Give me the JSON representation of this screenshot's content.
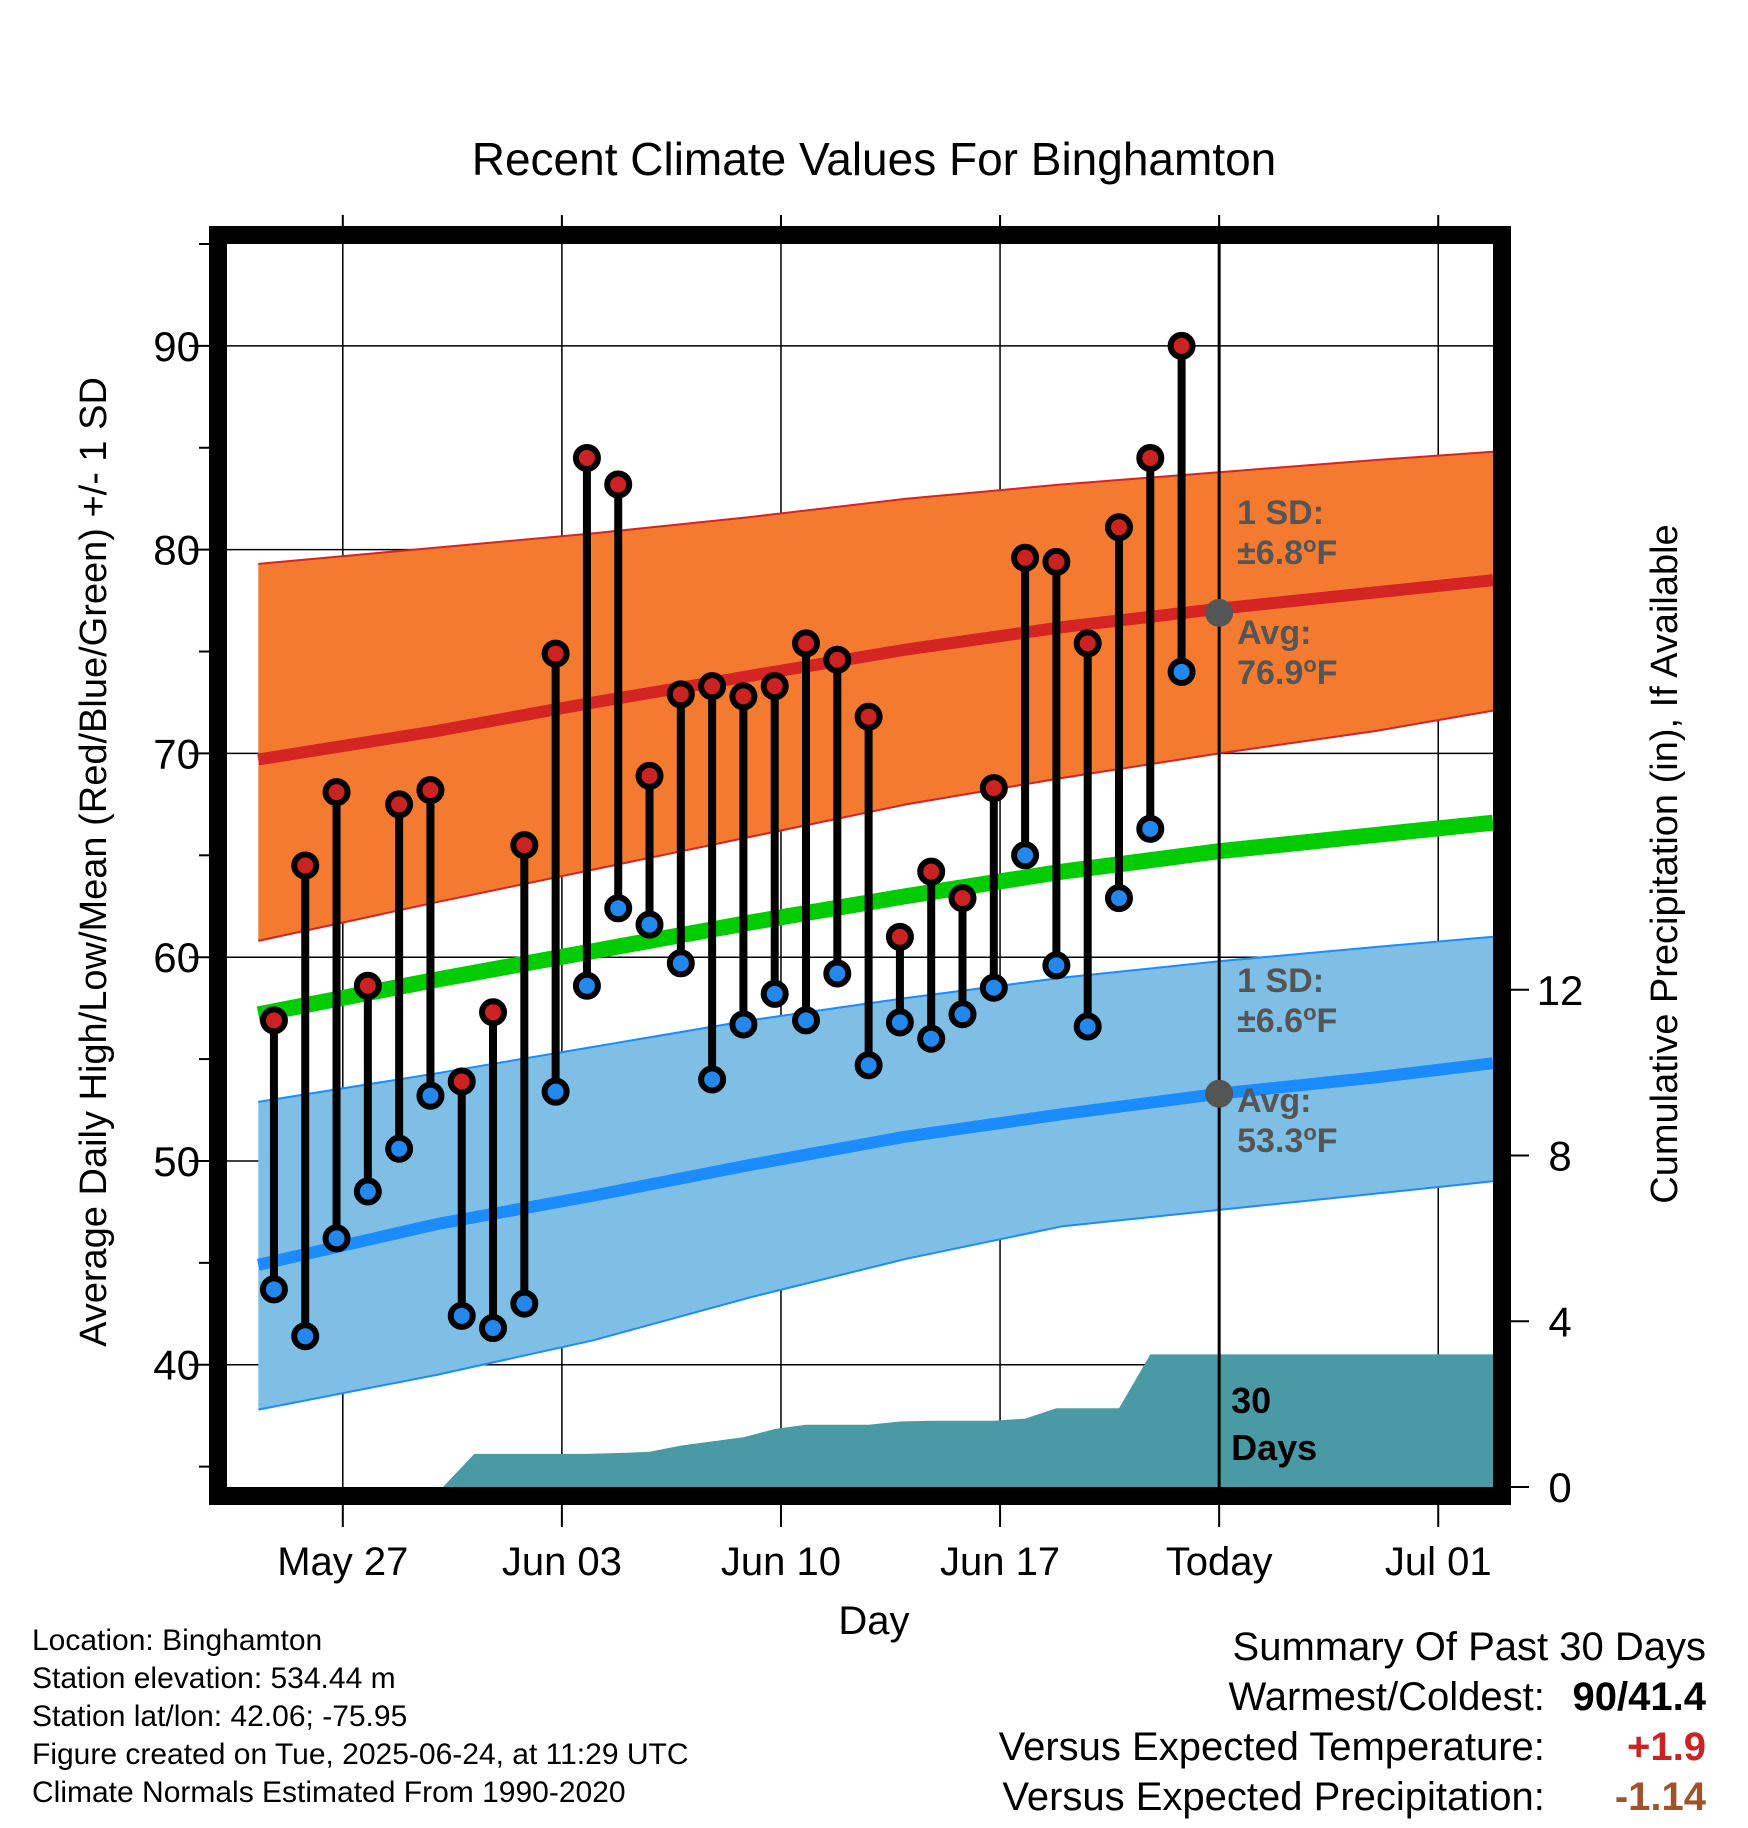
{
  "chart_data": {
    "type": "line",
    "title": "Recent Climate Values For Binghamton",
    "xlabel": "Day",
    "ylabel": "Average Daily High/Low/Mean (Red/Blue/Green) +/- 1 SD",
    "y2label": "Cumulative Precipitation (in), If Available",
    "ylim": [
      34,
      95
    ],
    "y2lim": [
      0,
      30
    ],
    "x_ticks": [
      {
        "day": 2,
        "label": "May 27"
      },
      {
        "day": 9,
        "label": "Jun 03"
      },
      {
        "day": 16,
        "label": "Jun 10"
      },
      {
        "day": 23,
        "label": "Jun 17"
      },
      {
        "day": 30,
        "label": "Today"
      },
      {
        "day": 37,
        "label": "Jul 01"
      }
    ],
    "y_ticks": [
      40,
      50,
      60,
      70,
      80,
      90
    ],
    "y2_ticks": [
      0,
      4,
      8,
      12
    ],
    "xlim_days": [
      -1.7,
      38.75
    ],
    "today_day": 30,
    "grid": true,
    "normals": {
      "days": [
        -0.7,
        5,
        10,
        15,
        20,
        25,
        30,
        35,
        38.75
      ],
      "high_avg": [
        69.7,
        71.1,
        72.5,
        73.8,
        75.1,
        76.2,
        77.1,
        77.9,
        78.5
      ],
      "high_upper": [
        79.3,
        80.1,
        80.8,
        81.6,
        82.5,
        83.2,
        83.8,
        84.4,
        84.8
      ],
      "high_lower": [
        60.8,
        62.7,
        64.3,
        65.9,
        67.5,
        68.8,
        70.0,
        71.1,
        72.1
      ],
      "mean_avg": [
        57.2,
        58.9,
        60.3,
        61.7,
        63.0,
        64.2,
        65.2,
        66.0,
        66.6
      ],
      "low_avg": [
        44.9,
        46.9,
        48.3,
        49.8,
        51.2,
        52.3,
        53.3,
        54.1,
        54.8
      ],
      "low_upper": [
        52.9,
        54.3,
        55.6,
        56.9,
        58.0,
        59.0,
        59.8,
        60.5,
        61.0
      ],
      "low_lower": [
        37.8,
        39.5,
        41.2,
        43.3,
        45.2,
        46.8,
        47.6,
        48.4,
        49.0
      ]
    },
    "series": [
      {
        "name": "High",
        "days": [
          -0.2,
          0.8,
          1.8,
          2.8,
          3.8,
          4.8,
          5.8,
          6.8,
          7.8,
          8.8,
          9.8,
          10.8,
          11.8,
          12.8,
          13.8,
          14.8,
          15.8,
          16.8,
          17.8,
          18.8,
          19.8,
          20.8,
          21.8,
          22.8,
          23.8,
          24.8,
          25.8,
          26.8,
          27.8,
          28.8
        ],
        "values": [
          56.9,
          64.5,
          68.1,
          58.6,
          67.5,
          68.2,
          53.9,
          57.3,
          65.5,
          74.9,
          84.5,
          83.2,
          68.9,
          72.9,
          73.3,
          72.8,
          73.3,
          75.4,
          74.6,
          71.8,
          61.0,
          64.2,
          62.9,
          68.3,
          79.6,
          79.4,
          75.4,
          81.1,
          84.5,
          90.0
        ]
      },
      {
        "name": "Low",
        "days": [
          -0.2,
          0.8,
          1.8,
          2.8,
          3.8,
          4.8,
          5.8,
          6.8,
          7.8,
          8.8,
          9.8,
          10.8,
          11.8,
          12.8,
          13.8,
          14.8,
          15.8,
          16.8,
          17.8,
          18.8,
          19.8,
          20.8,
          21.8,
          22.8,
          23.8,
          24.8,
          25.8,
          26.8,
          27.8,
          28.8
        ],
        "values": [
          43.7,
          41.4,
          46.2,
          48.5,
          50.6,
          53.2,
          42.4,
          41.8,
          43.0,
          53.4,
          58.6,
          62.4,
          61.6,
          59.7,
          54.0,
          56.7,
          58.2,
          56.9,
          59.2,
          54.7,
          56.8,
          56.0,
          57.2,
          58.5,
          65.0,
          59.6,
          56.6,
          62.9,
          66.3,
          74.0
        ]
      },
      {
        "name": "Cumulative Precipitation",
        "days": [
          5.2,
          6.2,
          7.8,
          9.8,
          10.8,
          11.8,
          12.8,
          13.8,
          14.8,
          15.8,
          16.8,
          17.8,
          18.8,
          19.8,
          20.8,
          21.8,
          22.8,
          23.8,
          24.8,
          25.8,
          26.8,
          27.8,
          28.8,
          29.8,
          30.8,
          31.8,
          32.8,
          33.8,
          34.8,
          35.8,
          36.8,
          37.8,
          38.75
        ],
        "values": [
          0,
          0.8,
          0.8,
          0.8,
          0.82,
          0.85,
          1.0,
          1.1,
          1.2,
          1.4,
          1.5,
          1.5,
          1.5,
          1.58,
          1.6,
          1.6,
          1.6,
          1.65,
          1.9,
          1.9,
          1.9,
          3.2,
          3.2,
          3.2,
          3.2,
          3.2,
          3.2,
          3.2,
          3.2,
          3.2,
          3.2,
          3.2,
          3.2
        ]
      }
    ],
    "annotations": {
      "high_sd_label": "1 SD:",
      "high_sd_value": "±6.8",
      "high_avg_label": "Avg:",
      "high_avg_value": "76.9",
      "low_sd_label": "1 SD:",
      "low_sd_value": "±6.6",
      "low_avg_label": "Avg:",
      "low_avg_value": "53.3",
      "degree_unit": "o",
      "temp_unit": "F",
      "days_number": "30",
      "days_word": "Days"
    },
    "colors": {
      "high_band": "#f47a30",
      "high_line": "#d42424",
      "mean_line": "#00cc00",
      "low_band": "#7fbfe6",
      "low_line": "#1a8cff",
      "precip": "#4a9aa5",
      "high_dot": "#cc2222",
      "low_dot": "#2288ee",
      "annotation": "#555555"
    }
  },
  "info": {
    "location": "Location: Binghamton",
    "elevation": "Station elevation: 534.44 m",
    "latlon": "Station lat/lon: 42.06; -75.95",
    "created": "Figure created on Tue, 2025-06-24, at 11:29 UTC",
    "normals": "Climate Normals Estimated From 1990-2020"
  },
  "summary": {
    "title": "Summary Of Past 30 Days",
    "warmest_label": "Warmest/Coldest:",
    "warmest_value": "90/41.4",
    "temp_label": "Versus Expected Temperature:",
    "temp_value": "+1.9",
    "temp_color": "#cc2222",
    "precip_label": "Versus Expected Precipitation:",
    "precip_value": "-1.14",
    "precip_color": "#a0522d"
  }
}
